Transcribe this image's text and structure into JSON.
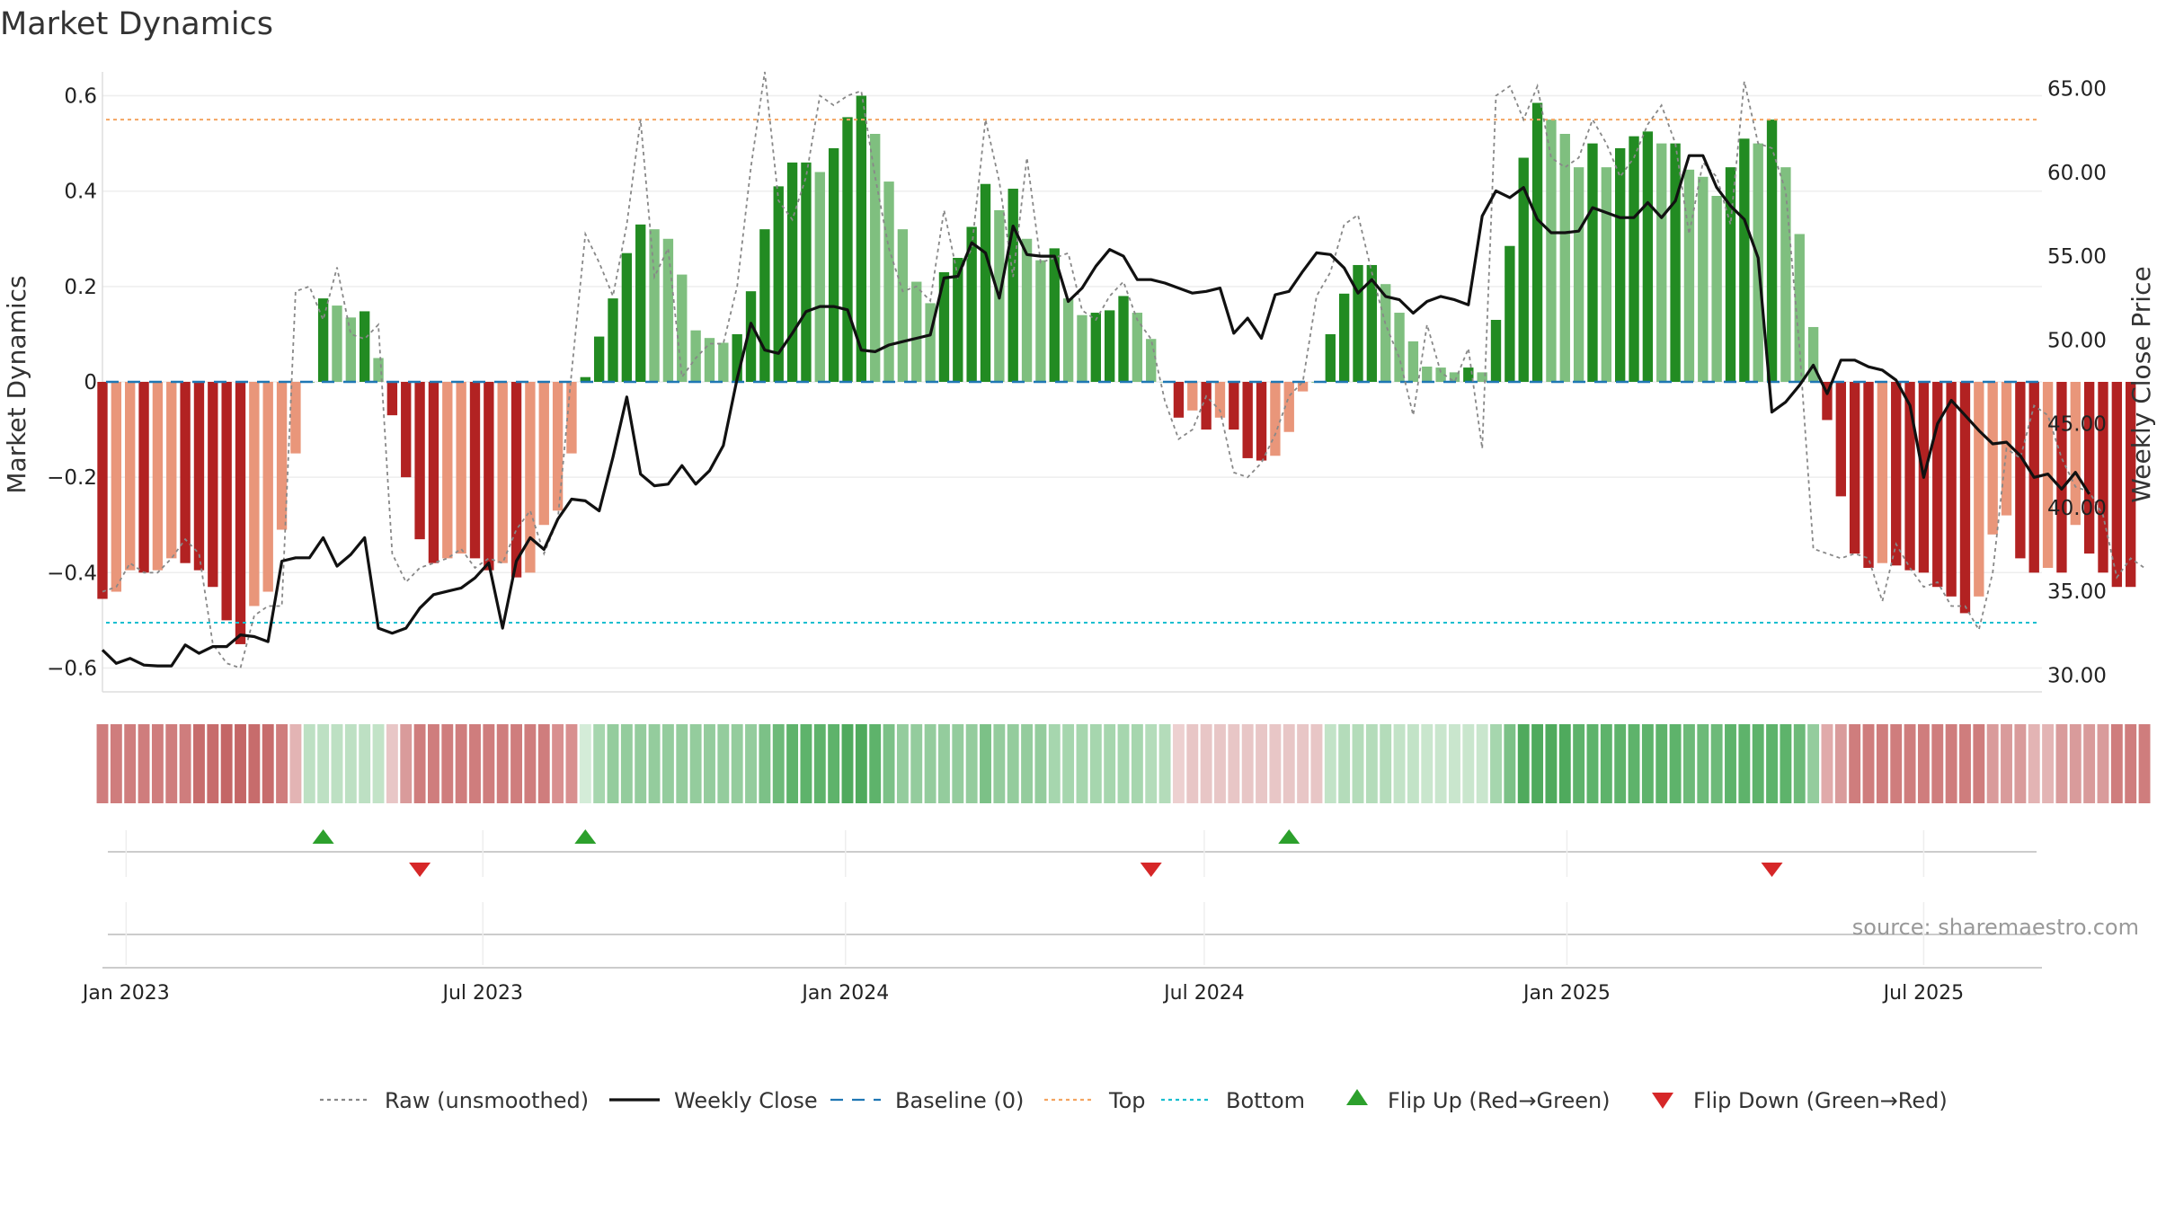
{
  "chart_data": {
    "type": "bar",
    "title": "Market Dynamics",
    "ylabel_left": "Market Dynamics",
    "ylabel_right": "Weekly Close Price",
    "ylim_left": [
      -0.65,
      0.65
    ],
    "ylim_right": [
      29,
      66
    ],
    "yticks_left": [
      0.6,
      0.4,
      0.2,
      0,
      -0.2,
      -0.4,
      -0.6
    ],
    "ytick_labels_left": [
      "0.6",
      "0.4",
      "0.2",
      "0",
      "−0.2",
      "−0.4",
      "−0.6"
    ],
    "yticks_right": [
      65,
      60,
      55,
      50,
      45,
      40,
      35,
      30
    ],
    "ytick_labels_right": [
      "65.00",
      "60.00",
      "55.00",
      "50.00",
      "45.00",
      "40.00",
      "35.00",
      "30.00"
    ],
    "x_start": "2022-12-20",
    "x_end": "2025-08-30",
    "x_ticks": [
      {
        "date": "2023-01-01",
        "label": "Jan 2023"
      },
      {
        "date": "2023-07-01",
        "label": "Jul 2023"
      },
      {
        "date": "2024-01-01",
        "label": "Jan 2024"
      },
      {
        "date": "2024-07-01",
        "label": "Jul 2024"
      },
      {
        "date": "2025-01-01",
        "label": "Jan 2025"
      },
      {
        "date": "2025-07-01",
        "label": "Jul 2025"
      }
    ],
    "first_week": "2022-12-20",
    "week_step_days": 7,
    "top_line": 0.55,
    "bottom_line": -0.505,
    "baseline": 0,
    "momentum": [
      -0.455,
      -0.44,
      -0.395,
      -0.4,
      -0.395,
      -0.37,
      -0.38,
      -0.395,
      -0.43,
      -0.5,
      -0.55,
      -0.47,
      -0.44,
      -0.31,
      -0.15,
      0.0,
      0.175,
      0.16,
      0.135,
      0.148,
      0.05,
      -0.07,
      -0.2,
      -0.33,
      -0.38,
      -0.37,
      -0.36,
      -0.37,
      -0.395,
      -0.38,
      -0.41,
      -0.4,
      -0.3,
      -0.27,
      -0.15,
      0.01,
      0.095,
      0.175,
      0.27,
      0.33,
      0.32,
      0.3,
      0.225,
      0.108,
      0.092,
      0.082,
      0.1,
      0.19,
      0.32,
      0.41,
      0.46,
      0.46,
      0.44,
      0.49,
      0.555,
      0.6,
      0.52,
      0.42,
      0.32,
      0.21,
      0.165,
      0.23,
      0.26,
      0.325,
      0.415,
      0.36,
      0.405,
      0.3,
      0.255,
      0.28,
      0.175,
      0.14,
      0.145,
      0.15,
      0.18,
      0.145,
      0.09,
      0.0,
      -0.075,
      -0.06,
      -0.1,
      -0.075,
      -0.1,
      -0.16,
      -0.165,
      -0.155,
      -0.105,
      -0.02,
      0.0,
      0.1,
      0.185,
      0.245,
      0.245,
      0.205,
      0.145,
      0.085,
      0.032,
      0.03,
      0.02,
      0.03,
      0.02,
      0.13,
      0.285,
      0.47,
      0.585,
      0.55,
      0.52,
      0.45,
      0.5,
      0.45,
      0.49,
      0.515,
      0.525,
      0.5,
      0.5,
      0.445,
      0.43,
      0.39,
      0.45,
      0.51,
      0.5,
      0.55,
      0.45,
      0.31,
      0.115,
      -0.08,
      -0.24,
      -0.36,
      -0.39,
      -0.38,
      -0.385,
      -0.395,
      -0.4,
      -0.43,
      -0.45,
      -0.485,
      -0.45,
      -0.32,
      -0.28,
      -0.37,
      -0.4,
      -0.39,
      -0.4,
      -0.3,
      -0.36,
      -0.4,
      -0.43,
      -0.43
    ],
    "color_legend": {
      "strong_up": "#228b22",
      "weak_up": "#7fbf7f",
      "strong_down": "#b22222",
      "weak_down": "#e9967a"
    },
    "raw_unsmoothed": [
      -0.44,
      -0.43,
      -0.38,
      -0.4,
      -0.4,
      -0.37,
      -0.33,
      -0.36,
      -0.55,
      -0.59,
      -0.6,
      -0.49,
      -0.47,
      -0.47,
      0.19,
      0.2,
      0.13,
      0.24,
      0.1,
      0.09,
      0.12,
      -0.36,
      -0.42,
      -0.39,
      -0.38,
      -0.37,
      -0.35,
      -0.39,
      -0.37,
      -0.38,
      -0.31,
      -0.27,
      -0.36,
      -0.29,
      0.02,
      0.31,
      0.25,
      0.18,
      0.33,
      0.55,
      0.22,
      0.28,
      0.01,
      0.05,
      0.08,
      0.08,
      0.2,
      0.45,
      0.65,
      0.38,
      0.34,
      0.43,
      0.6,
      0.58,
      0.6,
      0.61,
      0.43,
      0.28,
      0.19,
      0.2,
      0.17,
      0.36,
      0.22,
      0.28,
      0.55,
      0.42,
      0.22,
      0.47,
      0.25,
      0.26,
      0.27,
      0.15,
      0.13,
      0.18,
      0.21,
      0.13,
      0.09,
      -0.04,
      -0.12,
      -0.1,
      -0.03,
      -0.06,
      -0.19,
      -0.2,
      -0.17,
      -0.11,
      -0.03,
      0.0,
      0.18,
      0.23,
      0.33,
      0.35,
      0.23,
      0.12,
      0.05,
      -0.07,
      0.12,
      0.02,
      0.0,
      0.07,
      -0.14,
      0.6,
      0.62,
      0.55,
      0.62,
      0.47,
      0.45,
      0.47,
      0.55,
      0.5,
      0.43,
      0.47,
      0.54,
      0.58,
      0.5,
      0.31,
      0.46,
      0.43,
      0.33,
      0.63,
      0.5,
      0.49,
      0.4,
      0.07,
      -0.35,
      -0.36,
      -0.37,
      -0.36,
      -0.37,
      -0.46,
      -0.34,
      -0.39,
      -0.43,
      -0.42,
      -0.47,
      -0.47,
      -0.52,
      -0.4,
      -0.14,
      -0.16,
      -0.05,
      -0.07,
      -0.16,
      -0.22,
      -0.23,
      -0.28,
      -0.41,
      -0.37,
      -0.39
    ],
    "weekly_close": [
      31.5,
      30.7,
      31.0,
      30.6,
      30.55,
      30.55,
      31.8,
      31.3,
      31.7,
      31.7,
      32.4,
      32.3,
      32.0,
      36.8,
      37.0,
      37.0,
      38.2,
      36.5,
      37.2,
      38.2,
      32.8,
      32.5,
      32.8,
      34.0,
      34.8,
      35.0,
      35.2,
      35.8,
      36.7,
      32.8,
      36.8,
      38.2,
      37.5,
      39.3,
      40.5,
      40.4,
      39.8,
      43.0,
      46.6,
      42.0,
      41.3,
      41.4,
      42.5,
      41.4,
      42.2,
      43.7,
      47.7,
      51.0,
      49.4,
      49.2,
      50.4,
      51.7,
      52.0,
      52.0,
      51.8,
      49.4,
      49.3,
      49.7,
      49.9,
      50.1,
      50.3,
      53.7,
      53.8,
      55.8,
      55.2,
      52.5,
      56.8,
      55.1,
      55.0,
      55.0,
      52.3,
      53.1,
      54.4,
      55.4,
      55.0,
      53.6,
      53.6,
      53.4,
      53.1,
      52.8,
      52.9,
      53.1,
      50.4,
      51.3,
      50.1,
      52.7,
      52.9,
      54.1,
      55.2,
      55.1,
      54.3,
      52.8,
      53.6,
      52.6,
      52.4,
      51.6,
      52.3,
      52.6,
      52.4,
      52.1,
      57.4,
      58.9,
      58.5,
      59.1,
      57.2,
      56.4,
      56.4,
      56.5,
      57.9,
      57.6,
      57.3,
      57.3,
      58.2,
      57.3,
      58.3,
      61.0,
      61.0,
      59.1,
      58.0,
      57.2,
      54.9,
      45.7,
      46.3,
      47.3,
      48.5,
      46.8,
      48.8,
      48.8,
      48.4,
      48.2,
      47.6,
      46.1,
      41.8,
      45.0,
      46.4,
      45.5,
      44.6,
      43.8,
      43.9,
      43.1,
      41.8,
      42.0,
      41.1,
      42.1,
      40.8
    ],
    "flip_up_dates": [
      "2023-04-11",
      "2023-08-22",
      "2024-08-13"
    ],
    "flip_down_dates": [
      "2023-05-30",
      "2024-06-04",
      "2025-04-15"
    ],
    "strip_colors": [
      "#cf7d7d",
      "#cf7d7d",
      "#cf7d7d",
      "#cf7d7d",
      "#cf7d7d",
      "#cf7d7d",
      "#cf7d7d",
      "#c76c6c",
      "#c76c6c",
      "#c46666",
      "#c46666",
      "#c76c6c",
      "#c76c6c",
      "#cf7d7d",
      "#e3b4b4",
      "#bde0c3",
      "#bde0c3",
      "#bde0c3",
      "#bde0c3",
      "#bde0c3",
      "#c2e3c7",
      "#e8c6c6",
      "#d99b9b",
      "#cf7d7d",
      "#cf7d7d",
      "#cf7d7d",
      "#cf7d7d",
      "#cf7d7d",
      "#cf7d7d",
      "#cf7d7d",
      "#cf7d7d",
      "#cf7d7d",
      "#cf7d7d",
      "#d88f8f",
      "#d88f8f",
      "#d4ecd8",
      "#a6d6ae",
      "#94cc9d",
      "#94cc9d",
      "#94cc9d",
      "#94cc9d",
      "#94cc9d",
      "#94cc9d",
      "#94cc9d",
      "#94cc9d",
      "#94cc9d",
      "#94cc9d",
      "#94cc9d",
      "#7cc187",
      "#6dba79",
      "#5eb36b",
      "#5eb36b",
      "#5eb36b",
      "#5eb36b",
      "#4faa5d",
      "#4faa5d",
      "#5eb36b",
      "#7cc187",
      "#94cc9d",
      "#94cc9d",
      "#94cc9d",
      "#94cc9d",
      "#94cc9d",
      "#94cc9d",
      "#7cc187",
      "#94cc9d",
      "#94cc9d",
      "#94cc9d",
      "#94cc9d",
      "#a6d6ae",
      "#a6d6ae",
      "#a6d6ae",
      "#a6d6ae",
      "#a6d6ae",
      "#a6d6ae",
      "#a6d6ae",
      "#b4dcba",
      "#b4dcba",
      "#edd0d0",
      "#e8c6c6",
      "#e8c6c6",
      "#e8c6c6",
      "#e8c6c6",
      "#e8c6c6",
      "#e8c6c6",
      "#e8c6c6",
      "#e8c6c6",
      "#e8c6c6",
      "#e8c6c6",
      "#c2e3c7",
      "#b4dcba",
      "#b4dcba",
      "#b4dcba",
      "#b4dcba",
      "#c2e3c7",
      "#c2e3c7",
      "#c9e6cd",
      "#c9e6cd",
      "#c9e6cd",
      "#c9e6cd",
      "#c9e6cd",
      "#a6d6ae",
      "#7cc187",
      "#4faa5d",
      "#4faa5d",
      "#4faa5d",
      "#4faa5d",
      "#5eb36b",
      "#5eb36b",
      "#5eb36b",
      "#5eb36b",
      "#5eb36b",
      "#5eb36b",
      "#5eb36b",
      "#5eb36b",
      "#6dba79",
      "#6dba79",
      "#6dba79",
      "#5eb36b",
      "#5eb36b",
      "#5eb36b",
      "#5eb36b",
      "#5eb36b",
      "#6dba79",
      "#94cc9d",
      "#e0aaaa",
      "#d99b9b",
      "#cf7d7d",
      "#cf7d7d",
      "#cf7d7d",
      "#cf7d7d",
      "#cf7d7d",
      "#cf7d7d",
      "#cf7d7d",
      "#cf7d7d",
      "#cf7d7d",
      "#cf7d7d",
      "#d99b9b",
      "#d99b9b",
      "#d99b9b",
      "#e3b4b4",
      "#e3b4b4",
      "#d99b9b",
      "#d99b9b",
      "#d99b9b",
      "#d99b9b",
      "#cf7d7d",
      "#cf7d7d",
      "#cf7d7d"
    ],
    "legend": [
      {
        "key": "raw",
        "label": "Raw (unsmoothed)",
        "color": "#888888",
        "style": "dotted"
      },
      {
        "key": "close",
        "label": "Weekly Close",
        "color": "#111111",
        "style": "solid"
      },
      {
        "key": "baseline",
        "label": "Baseline (0)",
        "color": "#1f77b4",
        "style": "dashed"
      },
      {
        "key": "top",
        "label": "Top",
        "color": "#f4a460",
        "style": "dotted"
      },
      {
        "key": "bottom",
        "label": "Bottom",
        "color": "#17becf",
        "style": "dotted"
      },
      {
        "key": "flip_up",
        "label": "Flip Up (Red→Green)",
        "color": "#2ca02c",
        "style": "triangle-up"
      },
      {
        "key": "flip_down",
        "label": "Flip Down (Green→Red)",
        "color": "#d62728",
        "style": "triangle-down"
      }
    ],
    "legend_position": "bottom-center",
    "grid": true,
    "source_note": "source: sharemaestro.com"
  }
}
